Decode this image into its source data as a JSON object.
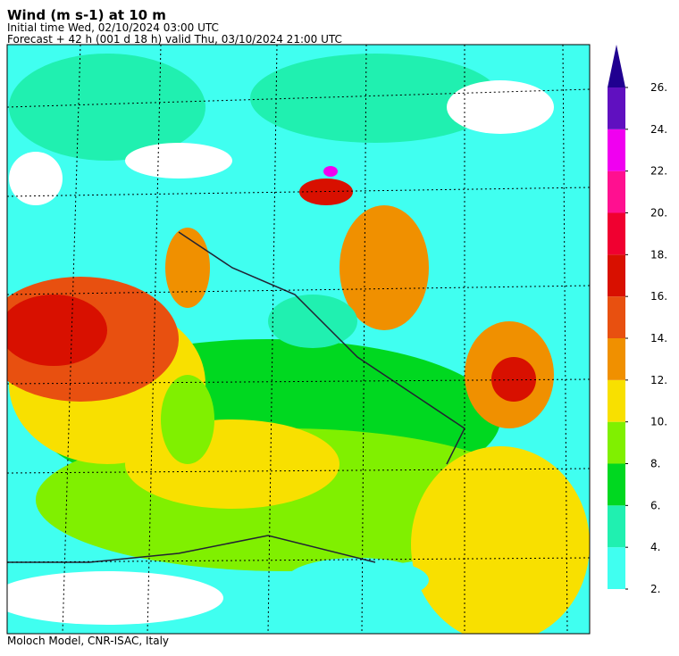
{
  "header": {
    "title": "Wind (m s-1) at 10 m",
    "initial": "Initial time  Wed, 02/10/2024  03:00 UTC",
    "forecast": "Forecast  +  42 h  (001 d 18 h)  valid Thu, 03/10/2024 21:00 UTC"
  },
  "footer": "Moloch Model, CNR-ISAC, Italy",
  "colorbar": {
    "ticks": [
      {
        "value": 2,
        "label": "2."
      },
      {
        "value": 4,
        "label": "4."
      },
      {
        "value": 6,
        "label": "6."
      },
      {
        "value": 8,
        "label": "8."
      },
      {
        "value": 10,
        "label": "10."
      },
      {
        "value": 12,
        "label": "12."
      },
      {
        "value": 14,
        "label": "14."
      },
      {
        "value": 16,
        "label": "16."
      },
      {
        "value": 18,
        "label": "18."
      },
      {
        "value": 20,
        "label": "20."
      },
      {
        "value": 22,
        "label": "22."
      },
      {
        "value": 24,
        "label": "24."
      },
      {
        "value": 26,
        "label": "26."
      }
    ],
    "colors": [
      "#40fff0",
      "#20f0b0",
      "#00d820",
      "#80f000",
      "#f8e000",
      "#f09000",
      "#e85010",
      "#d81000",
      "#f00030",
      "#ff1090",
      "#f000f0",
      "#6010c0",
      "#200090"
    ]
  }
}
